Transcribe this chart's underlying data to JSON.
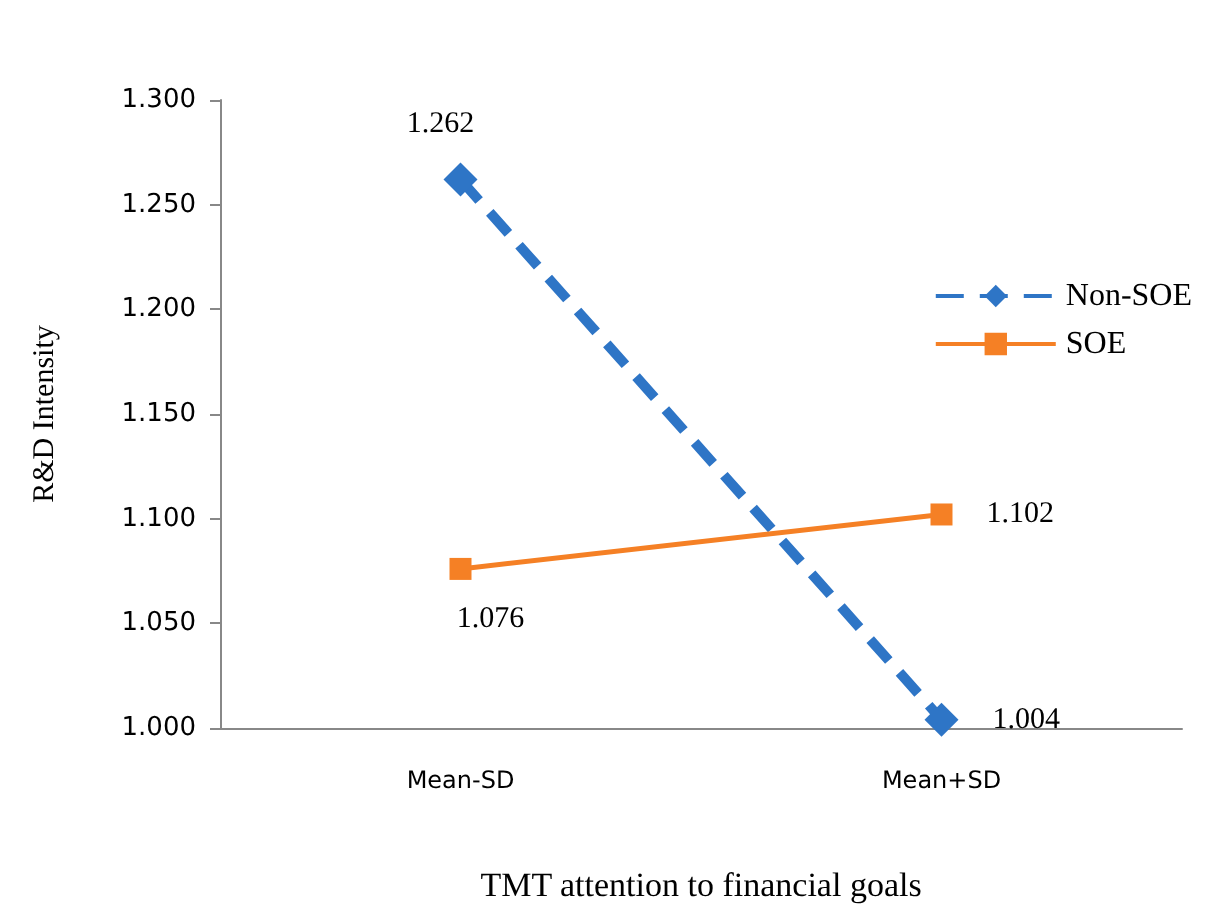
{
  "chart_data": {
    "type": "line",
    "xlabel": "TMT attention to financial goals",
    "ylabel": "R&D Intensity",
    "categories": [
      "Mean-SD",
      "Mean+SD"
    ],
    "series": [
      {
        "name": "Non-SOE",
        "color": "#2e75c6",
        "values": [
          1.262,
          1.004
        ],
        "value_labels": [
          "1.262",
          "1.004"
        ],
        "marker": "diamond",
        "line_style": "dashed"
      },
      {
        "name": "SOE",
        "color": "#f58025",
        "values": [
          1.076,
          1.102
        ],
        "value_labels": [
          "1.076",
          "1.102"
        ],
        "marker": "square",
        "line_style": "solid"
      }
    ],
    "ylim": [
      1.0,
      1.3
    ],
    "yticks": [
      {
        "value": 1.0,
        "label": "1.000"
      },
      {
        "value": 1.05,
        "label": "1.050"
      },
      {
        "value": 1.1,
        "label": "1.100"
      },
      {
        "value": 1.15,
        "label": "1.150"
      },
      {
        "value": 1.2,
        "label": "1.200"
      },
      {
        "value": 1.25,
        "label": "1.250"
      },
      {
        "value": 1.3,
        "label": "1.300"
      }
    ],
    "grid": false,
    "legend": "right"
  }
}
